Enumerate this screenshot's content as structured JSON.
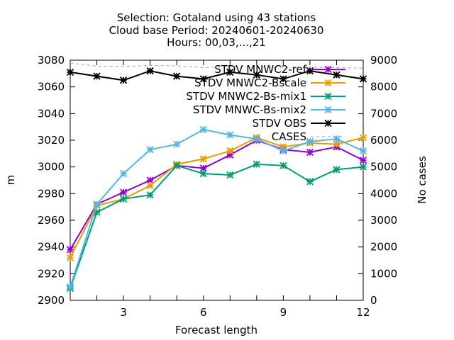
{
  "chart_data": {
    "type": "line",
    "title_lines": [
      "Selection: Gotaland using    43 stations",
      "Cloud base   Period: 20240601-20240630",
      "Hours: 00,03,...,21"
    ],
    "xlabel": "Forecast length",
    "ylabel": "m",
    "y2label": "No cases",
    "xlim": [
      1,
      12
    ],
    "ylim": [
      2900,
      3080
    ],
    "y2lim": [
      0,
      9000
    ],
    "xticks": [
      3,
      6,
      9,
      12
    ],
    "yticks": [
      2900,
      2920,
      2940,
      2960,
      2980,
      3000,
      3020,
      3040,
      3060,
      3080
    ],
    "y2ticks": [
      0,
      1000,
      2000,
      3000,
      4000,
      5000,
      6000,
      7000,
      8000,
      9000
    ],
    "legend_position": "top-right",
    "x": [
      1,
      2,
      3,
      4,
      5,
      6,
      7,
      8,
      9,
      10,
      11,
      12
    ],
    "series": [
      {
        "name": "STDV MNWC2-ref",
        "color": "#9400d3",
        "axis": "y",
        "values": [
          2938,
          2972,
          2981,
          2990,
          3001,
          2999,
          3009,
          3020,
          3013,
          3011,
          3015,
          3005
        ]
      },
      {
        "name": "STDV MNWC2-Bscale",
        "color": "#e69f00",
        "axis": "y",
        "values": [
          2932,
          2971,
          2976,
          2986,
          3002,
          3006,
          3012,
          3022,
          3015,
          3018,
          3017,
          3022
        ]
      },
      {
        "name": "STDV MNWC2-Bs-mix1",
        "color": "#009e73",
        "axis": "y",
        "values": [
          2909,
          2966,
          2976,
          2979,
          3001,
          2995,
          2994,
          3002,
          3001,
          2989,
          2998,
          3000
        ]
      },
      {
        "name": "STDV MNWC-Bs-mix2",
        "color": "#56b4e9",
        "axis": "y",
        "values": [
          2910,
          2972,
          2995,
          3013,
          3017,
          3028,
          3024,
          3021,
          3012,
          3019,
          3021,
          3012
        ]
      },
      {
        "name": "STDV OBS",
        "color": "#000000",
        "axis": "y",
        "values": [
          3071,
          3068,
          3065,
          3072,
          3068,
          3066,
          3071,
          3069,
          3066,
          3072,
          3069,
          3066
        ]
      },
      {
        "name": "CASES",
        "color": "#a0a0a0",
        "axis": "y2",
        "dashed": true,
        "values": [
          8890,
          8780,
          8770,
          8800,
          8790,
          8720,
          8770,
          8740,
          8730,
          8740,
          8720,
          8700
        ]
      }
    ]
  }
}
